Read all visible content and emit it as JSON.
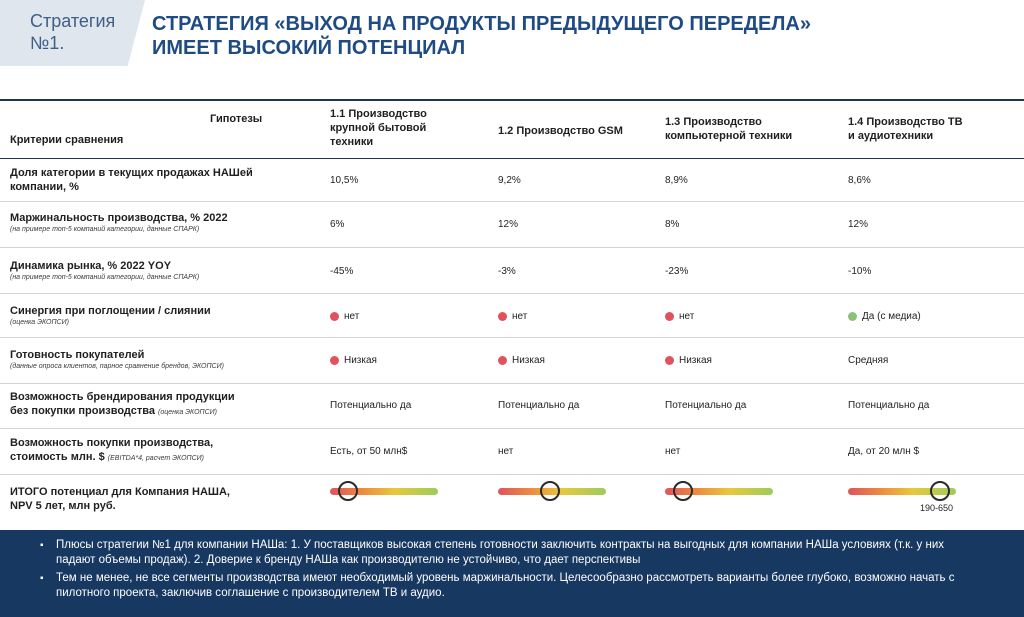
{
  "tag": {
    "line1": "Стратегия",
    "line2": "№1."
  },
  "title": {
    "line1": "СТРАТЕГИЯ «ВЫХОД НА ПРОДУКТЫ ПРЕДЫДУЩЕГО ПЕРЕДЕЛА»",
    "line2": "ИМЕЕТ ВЫСОКИЙ ПОТЕНЦИАЛ"
  },
  "table": {
    "corner_hypotheses": "Гипотезы",
    "corner_criteria": "Критерии сравнения",
    "columns": [
      {
        "line1": "1.1 Производство",
        "line2": "крупной бытовой",
        "line3": "техники"
      },
      {
        "line1": "1.2 Производство GSM",
        "line2": "",
        "line3": ""
      },
      {
        "line1": "1.3 Производство",
        "line2": "компьютерной техники",
        "line3": ""
      },
      {
        "line1": "1.4 Производство ТВ",
        "line2": "и аудиотехники",
        "line3": ""
      }
    ],
    "rows": [
      {
        "main1": "Доля категории в текущих продажах НАШей",
        "main2": "компании, %",
        "sub": "",
        "values": [
          "10,5%",
          "9,2%",
          "8,9%",
          "8,6%"
        ]
      },
      {
        "main1": "Маржинальность производства, % 2022",
        "main2": "",
        "sub": "(на примере топ-5 компаний категории, данные СПАРК)",
        "values": [
          "6%",
          "12%",
          "8%",
          "12%"
        ]
      },
      {
        "main1": "Динамика рынка, % 2022 YOY",
        "main2": "",
        "sub": "(на примере топ-5 компаний категории, данные СПАРК)",
        "values": [
          "-45%",
          "-3%",
          "-23%",
          "-10%"
        ]
      },
      {
        "main1": "Синергия при поглощении / слиянии",
        "main2": "",
        "sub": "(оценка ЭКОПСИ)",
        "values": [
          "нет",
          "нет",
          "нет",
          "Да (с медиа)"
        ],
        "dot_colors": [
          "#e0535d",
          "#e0535d",
          "#e0535d",
          "#8cc07a"
        ]
      },
      {
        "main1": "Готовность покупателей",
        "main2": "",
        "sub": "(данные опроса клиентов, парное сравнение брендов, ЭКОПСИ)",
        "values": [
          "Низкая",
          "Низкая",
          "Низкая",
          "Средняя"
        ],
        "dot_colors": [
          "#e0535d",
          "#e0535d",
          "#e0535d",
          ""
        ]
      },
      {
        "main1": "Возможность брендирования продукции",
        "main2": "без покупки производства",
        "sub_inline": "(оценка ЭКОПСИ)",
        "values": [
          "Потенциально да",
          "Потенциально да",
          "Потенциально да",
          "Потенциально да"
        ]
      },
      {
        "main1": "Возможность покупки производства,",
        "main2": "стоимость млн. $",
        "sub_inline": "(EBITDA*4, расчет ЭКОПСИ)",
        "values": [
          "Есть, от 50 млн$",
          "нет",
          "нет",
          "Да, от 20 млн $"
        ]
      },
      {
        "main1": "ИТОГО потенциал для Компания НАША,",
        "main2": "NPV 5 лет, млн руб.",
        "potential_levels": [
          0.17,
          0.48,
          0.17,
          0.85
        ],
        "range_label": "190-650"
      }
    ]
  },
  "footer": {
    "bullet1": "Плюсы стратегии №1 для компании НАШа: 1. У поставщиков высокая степень готовности заключить контракты на выгодных для компании НАШа условиях (т.к. у них падают объемы продаж). 2. Доверие к бренду НАШа как производителю не устойчиво, что дает перспективы",
    "bullet2": "Тем не менее, не все сегменты производства имеют необходимый уровень маржинальности. Целесообразно рассмотреть варианты более глубоко, возможно начать с пилотного проекта, заключив соглашение с производителем ТВ и аудио."
  },
  "colors": {
    "accent": "#1e4b83",
    "footer_bg": "#173861",
    "red_dot": "#e0535d",
    "green_dot": "#8cc07a"
  }
}
